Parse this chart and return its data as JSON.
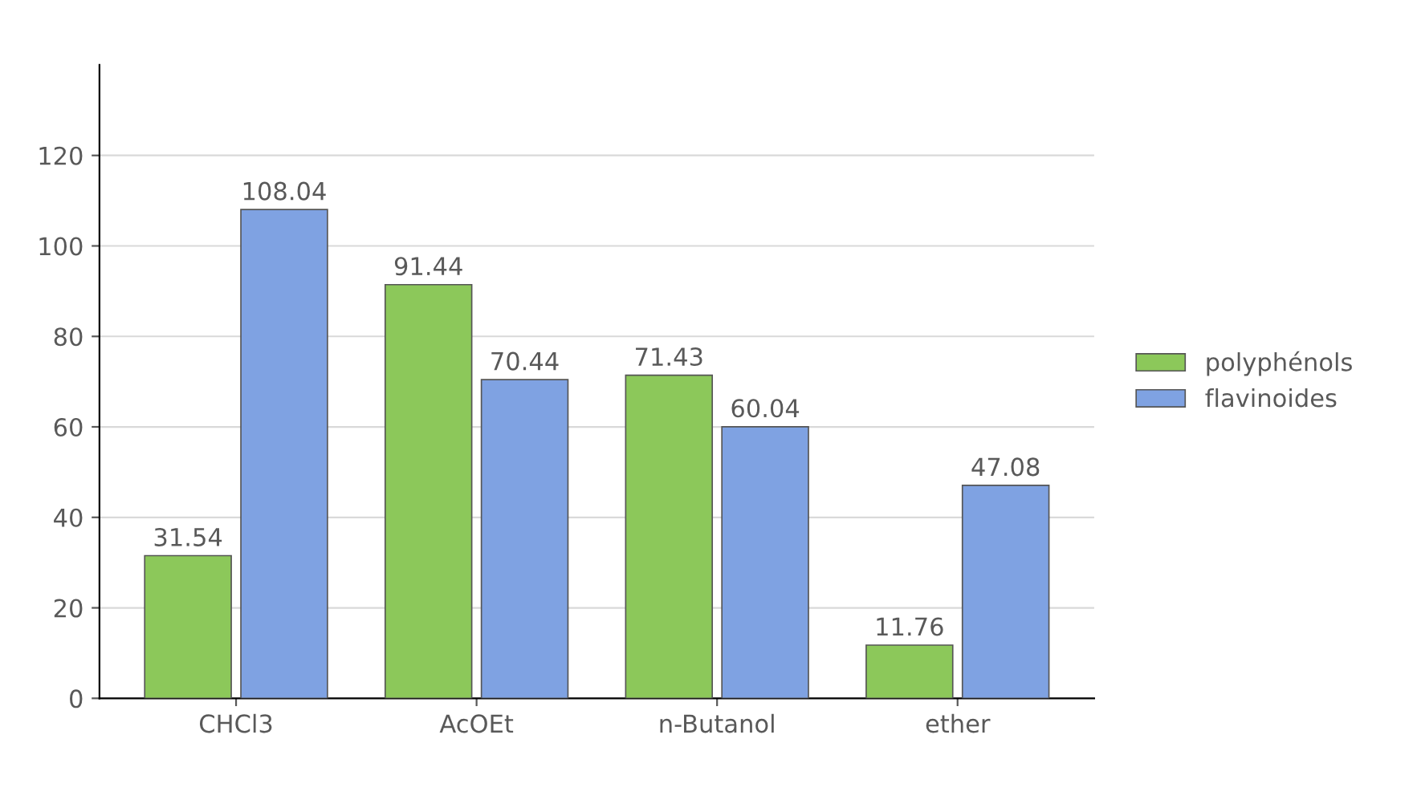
{
  "chart_data": {
    "type": "bar",
    "categories": [
      "CHCl3",
      "AcOEt",
      "n-Butanol",
      "ether"
    ],
    "series": [
      {
        "name": "polyphénols",
        "color": "#8cc85a",
        "values": [
          31.54,
          91.44,
          71.43,
          11.76
        ]
      },
      {
        "name": "flavinoides",
        "color": "#7fa2e2",
        "values": [
          108.04,
          70.44,
          60.04,
          47.08
        ]
      }
    ],
    "ylim": [
      0,
      140
    ],
    "yticks": [
      0,
      20,
      40,
      60,
      80,
      100,
      120
    ],
    "grid": "y",
    "data_labels": true,
    "legend": "right"
  }
}
